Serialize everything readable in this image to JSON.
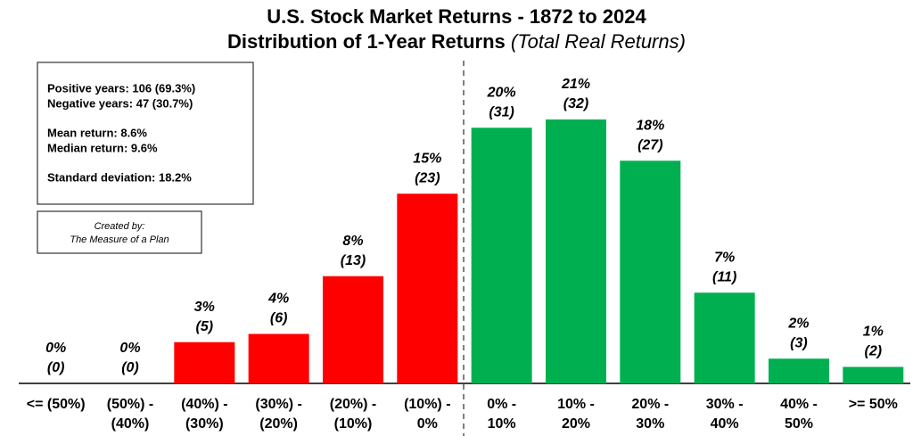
{
  "chart_data": {
    "type": "bar",
    "title": "U.S. Stock Market Returns - 1872 to 2024",
    "subtitle": "Distribution of 1-Year Returns",
    "subtitle_note": "(Total Real Returns)",
    "categories": [
      [
        "<= (50%)"
      ],
      [
        "(50%) -",
        "(40%)"
      ],
      [
        "(40%) -",
        "(30%)"
      ],
      [
        "(30%) -",
        "(20%)"
      ],
      [
        "(20%) -",
        "(10%)"
      ],
      [
        "(10%) -",
        "0%"
      ],
      [
        "0% -",
        "10%"
      ],
      [
        "10% -",
        "20%"
      ],
      [
        "20% -",
        "30%"
      ],
      [
        "30% -",
        "40%"
      ],
      [
        "40% -",
        "50%"
      ],
      [
        ">= 50%"
      ]
    ],
    "values": [
      0,
      0,
      5,
      6,
      13,
      23,
      31,
      32,
      27,
      11,
      3,
      2
    ],
    "value_labels": [
      "(0)",
      "(0)",
      "(5)",
      "(6)",
      "(13)",
      "(23)",
      "(31)",
      "(32)",
      "(27)",
      "(11)",
      "(3)",
      "(2)"
    ],
    "percent_labels": [
      "0%",
      "0%",
      "3%",
      "4%",
      "8%",
      "15%",
      "20%",
      "21%",
      "18%",
      "7%",
      "2%",
      "1%"
    ],
    "colors": [
      "#ff0000",
      "#ff0000",
      "#ff0000",
      "#ff0000",
      "#ff0000",
      "#ff0000",
      "#00b050",
      "#00b050",
      "#00b050",
      "#00b050",
      "#00b050",
      "#00b050"
    ],
    "stats": [
      [
        "Positive years: 106 (69.3%)",
        "Negative years: 47 (30.7%)"
      ],
      [
        "Mean return: 8.6%",
        "Median return: 9.6%"
      ],
      [
        "Standard deviation: 18.2%"
      ]
    ],
    "credit": [
      "Created by:",
      "The Measure of a Plan"
    ]
  }
}
